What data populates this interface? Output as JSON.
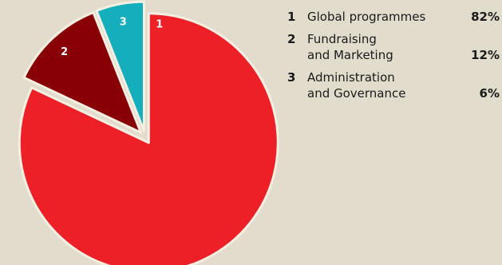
{
  "chart_data": {
    "type": "pie",
    "slices": [
      {
        "number": "1",
        "label_lines": [
          "Global programmes"
        ],
        "value": 82,
        "value_label": "82%",
        "color": "#ee2027"
      },
      {
        "number": "2",
        "label_lines": [
          "Fundraising",
          "and Marketing"
        ],
        "value": 12,
        "value_label": "12%",
        "color": "#880006"
      },
      {
        "number": "3",
        "label_lines": [
          "Administration",
          "and Governance"
        ],
        "value": 6,
        "value_label": "6%",
        "color": "#14aebc"
      }
    ],
    "legend_position": "right",
    "stroke_color": "#f5efe2"
  }
}
